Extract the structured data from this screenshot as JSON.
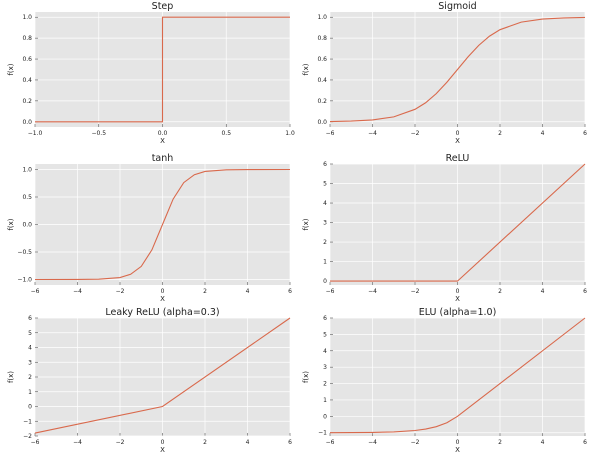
{
  "colors": {
    "background": "#e5e5e5",
    "grid": "#ffffff",
    "line": "#d9694c",
    "text": "#222222"
  },
  "chart_data": [
    {
      "type": "line",
      "title": "Step",
      "xlabel": "X",
      "ylabel": "f(x)",
      "xlim": [
        -1.0,
        1.0
      ],
      "ylim": [
        -0.05,
        1.05
      ],
      "xticks": [
        -1.0,
        -0.5,
        0.0,
        0.5,
        1.0
      ],
      "xtick_labels": [
        "−1.0",
        "−0.5",
        "0.0",
        "0.5",
        "1.0"
      ],
      "yticks": [
        0.0,
        0.2,
        0.4,
        0.6,
        0.8,
        1.0
      ],
      "ytick_labels": [
        "0.0",
        "0.2",
        "0.4",
        "0.6",
        "0.8",
        "1.0"
      ],
      "series": [
        {
          "name": "Step",
          "x": [
            -1.0,
            0.0,
            0.0,
            1.0
          ],
          "y": [
            0.0,
            0.0,
            1.0,
            1.0
          ]
        }
      ]
    },
    {
      "type": "line",
      "title": "Sigmoid",
      "xlabel": "X",
      "ylabel": "f(x)",
      "xlim": [
        -6,
        6
      ],
      "ylim": [
        -0.05,
        1.05
      ],
      "xticks": [
        -6,
        -4,
        -2,
        0,
        2,
        4,
        6
      ],
      "xtick_labels": [
        "−6",
        "−4",
        "−2",
        "0",
        "2",
        "4",
        "6"
      ],
      "yticks": [
        0.0,
        0.2,
        0.4,
        0.6,
        0.8,
        1.0
      ],
      "ytick_labels": [
        "0.0",
        "0.2",
        "0.4",
        "0.6",
        "0.8",
        "1.0"
      ],
      "series": [
        {
          "name": "Sigmoid",
          "x": [
            -6,
            -5,
            -4,
            -3,
            -2,
            -1.5,
            -1,
            -0.5,
            0,
            0.5,
            1,
            1.5,
            2,
            3,
            4,
            5,
            6
          ],
          "y": [
            0.002,
            0.007,
            0.018,
            0.047,
            0.119,
            0.182,
            0.269,
            0.378,
            0.5,
            0.622,
            0.731,
            0.818,
            0.881,
            0.953,
            0.982,
            0.993,
            0.998
          ]
        }
      ]
    },
    {
      "type": "line",
      "title": "tanh",
      "xlabel": "X",
      "ylabel": "f(x)",
      "xlim": [
        -6,
        6
      ],
      "ylim": [
        -1.1,
        1.1
      ],
      "xticks": [
        -6,
        -4,
        -2,
        0,
        2,
        4,
        6
      ],
      "xtick_labels": [
        "−6",
        "−4",
        "−2",
        "0",
        "2",
        "4",
        "6"
      ],
      "yticks": [
        -1.0,
        -0.5,
        0.0,
        0.5,
        1.0
      ],
      "ytick_labels": [
        "−1.0",
        "−0.5",
        "0.0",
        "0.5",
        "1.0"
      ],
      "series": [
        {
          "name": "tanh",
          "x": [
            -6,
            -4,
            -3,
            -2,
            -1.5,
            -1,
            -0.5,
            0,
            0.5,
            1,
            1.5,
            2,
            3,
            4,
            6
          ],
          "y": [
            -1.0,
            -0.999,
            -0.995,
            -0.964,
            -0.905,
            -0.762,
            -0.462,
            0.0,
            0.462,
            0.762,
            0.905,
            0.964,
            0.995,
            0.999,
            1.0
          ]
        }
      ]
    },
    {
      "type": "line",
      "title": "ReLU",
      "xlabel": "X",
      "ylabel": "f(x)",
      "xlim": [
        -6,
        6
      ],
      "ylim": [
        -0.2,
        6.0
      ],
      "xticks": [
        -6,
        -4,
        -2,
        0,
        2,
        4,
        6
      ],
      "xtick_labels": [
        "−6",
        "−4",
        "−2",
        "0",
        "2",
        "4",
        "6"
      ],
      "yticks": [
        0,
        1,
        2,
        3,
        4,
        5,
        6
      ],
      "ytick_labels": [
        "0",
        "1",
        "2",
        "3",
        "4",
        "5",
        "6"
      ],
      "series": [
        {
          "name": "ReLU",
          "x": [
            -6,
            0,
            6
          ],
          "y": [
            0,
            0,
            6
          ]
        }
      ]
    },
    {
      "type": "line",
      "title": "Leaky ReLU (alpha=0.3)",
      "xlabel": "X",
      "ylabel": "f(x)",
      "xlim": [
        -6,
        6
      ],
      "ylim": [
        -2.0,
        6.0
      ],
      "xticks": [
        -6,
        -4,
        -2,
        0,
        2,
        4,
        6
      ],
      "xtick_labels": [
        "−6",
        "−4",
        "−2",
        "0",
        "2",
        "4",
        "6"
      ],
      "yticks": [
        -2,
        -1,
        0,
        1,
        2,
        3,
        4,
        5,
        6
      ],
      "ytick_labels": [
        "−2",
        "−1",
        "0",
        "1",
        "2",
        "3",
        "4",
        "5",
        "6"
      ],
      "series": [
        {
          "name": "Leaky ReLU",
          "x": [
            -6,
            0,
            6
          ],
          "y": [
            -1.8,
            0,
            6
          ]
        }
      ]
    },
    {
      "type": "line",
      "title": "ELU (alpha=1.0)",
      "xlabel": "X",
      "ylabel": "f(x)",
      "xlim": [
        -6,
        6
      ],
      "ylim": [
        -1.2,
        6.0
      ],
      "xticks": [
        -6,
        -4,
        -2,
        0,
        2,
        4,
        6
      ],
      "xtick_labels": [
        "−6",
        "−4",
        "−2",
        "0",
        "2",
        "4",
        "6"
      ],
      "yticks": [
        -1,
        0,
        1,
        2,
        3,
        4,
        5,
        6
      ],
      "ytick_labels": [
        "−1",
        "0",
        "1",
        "2",
        "3",
        "4",
        "5",
        "6"
      ],
      "series": [
        {
          "name": "ELU",
          "x": [
            -6,
            -5,
            -4,
            -3,
            -2,
            -1.5,
            -1,
            -0.5,
            0,
            6
          ],
          "y": [
            -0.998,
            -0.993,
            -0.982,
            -0.95,
            -0.865,
            -0.777,
            -0.632,
            -0.393,
            0,
            6
          ]
        }
      ]
    }
  ]
}
